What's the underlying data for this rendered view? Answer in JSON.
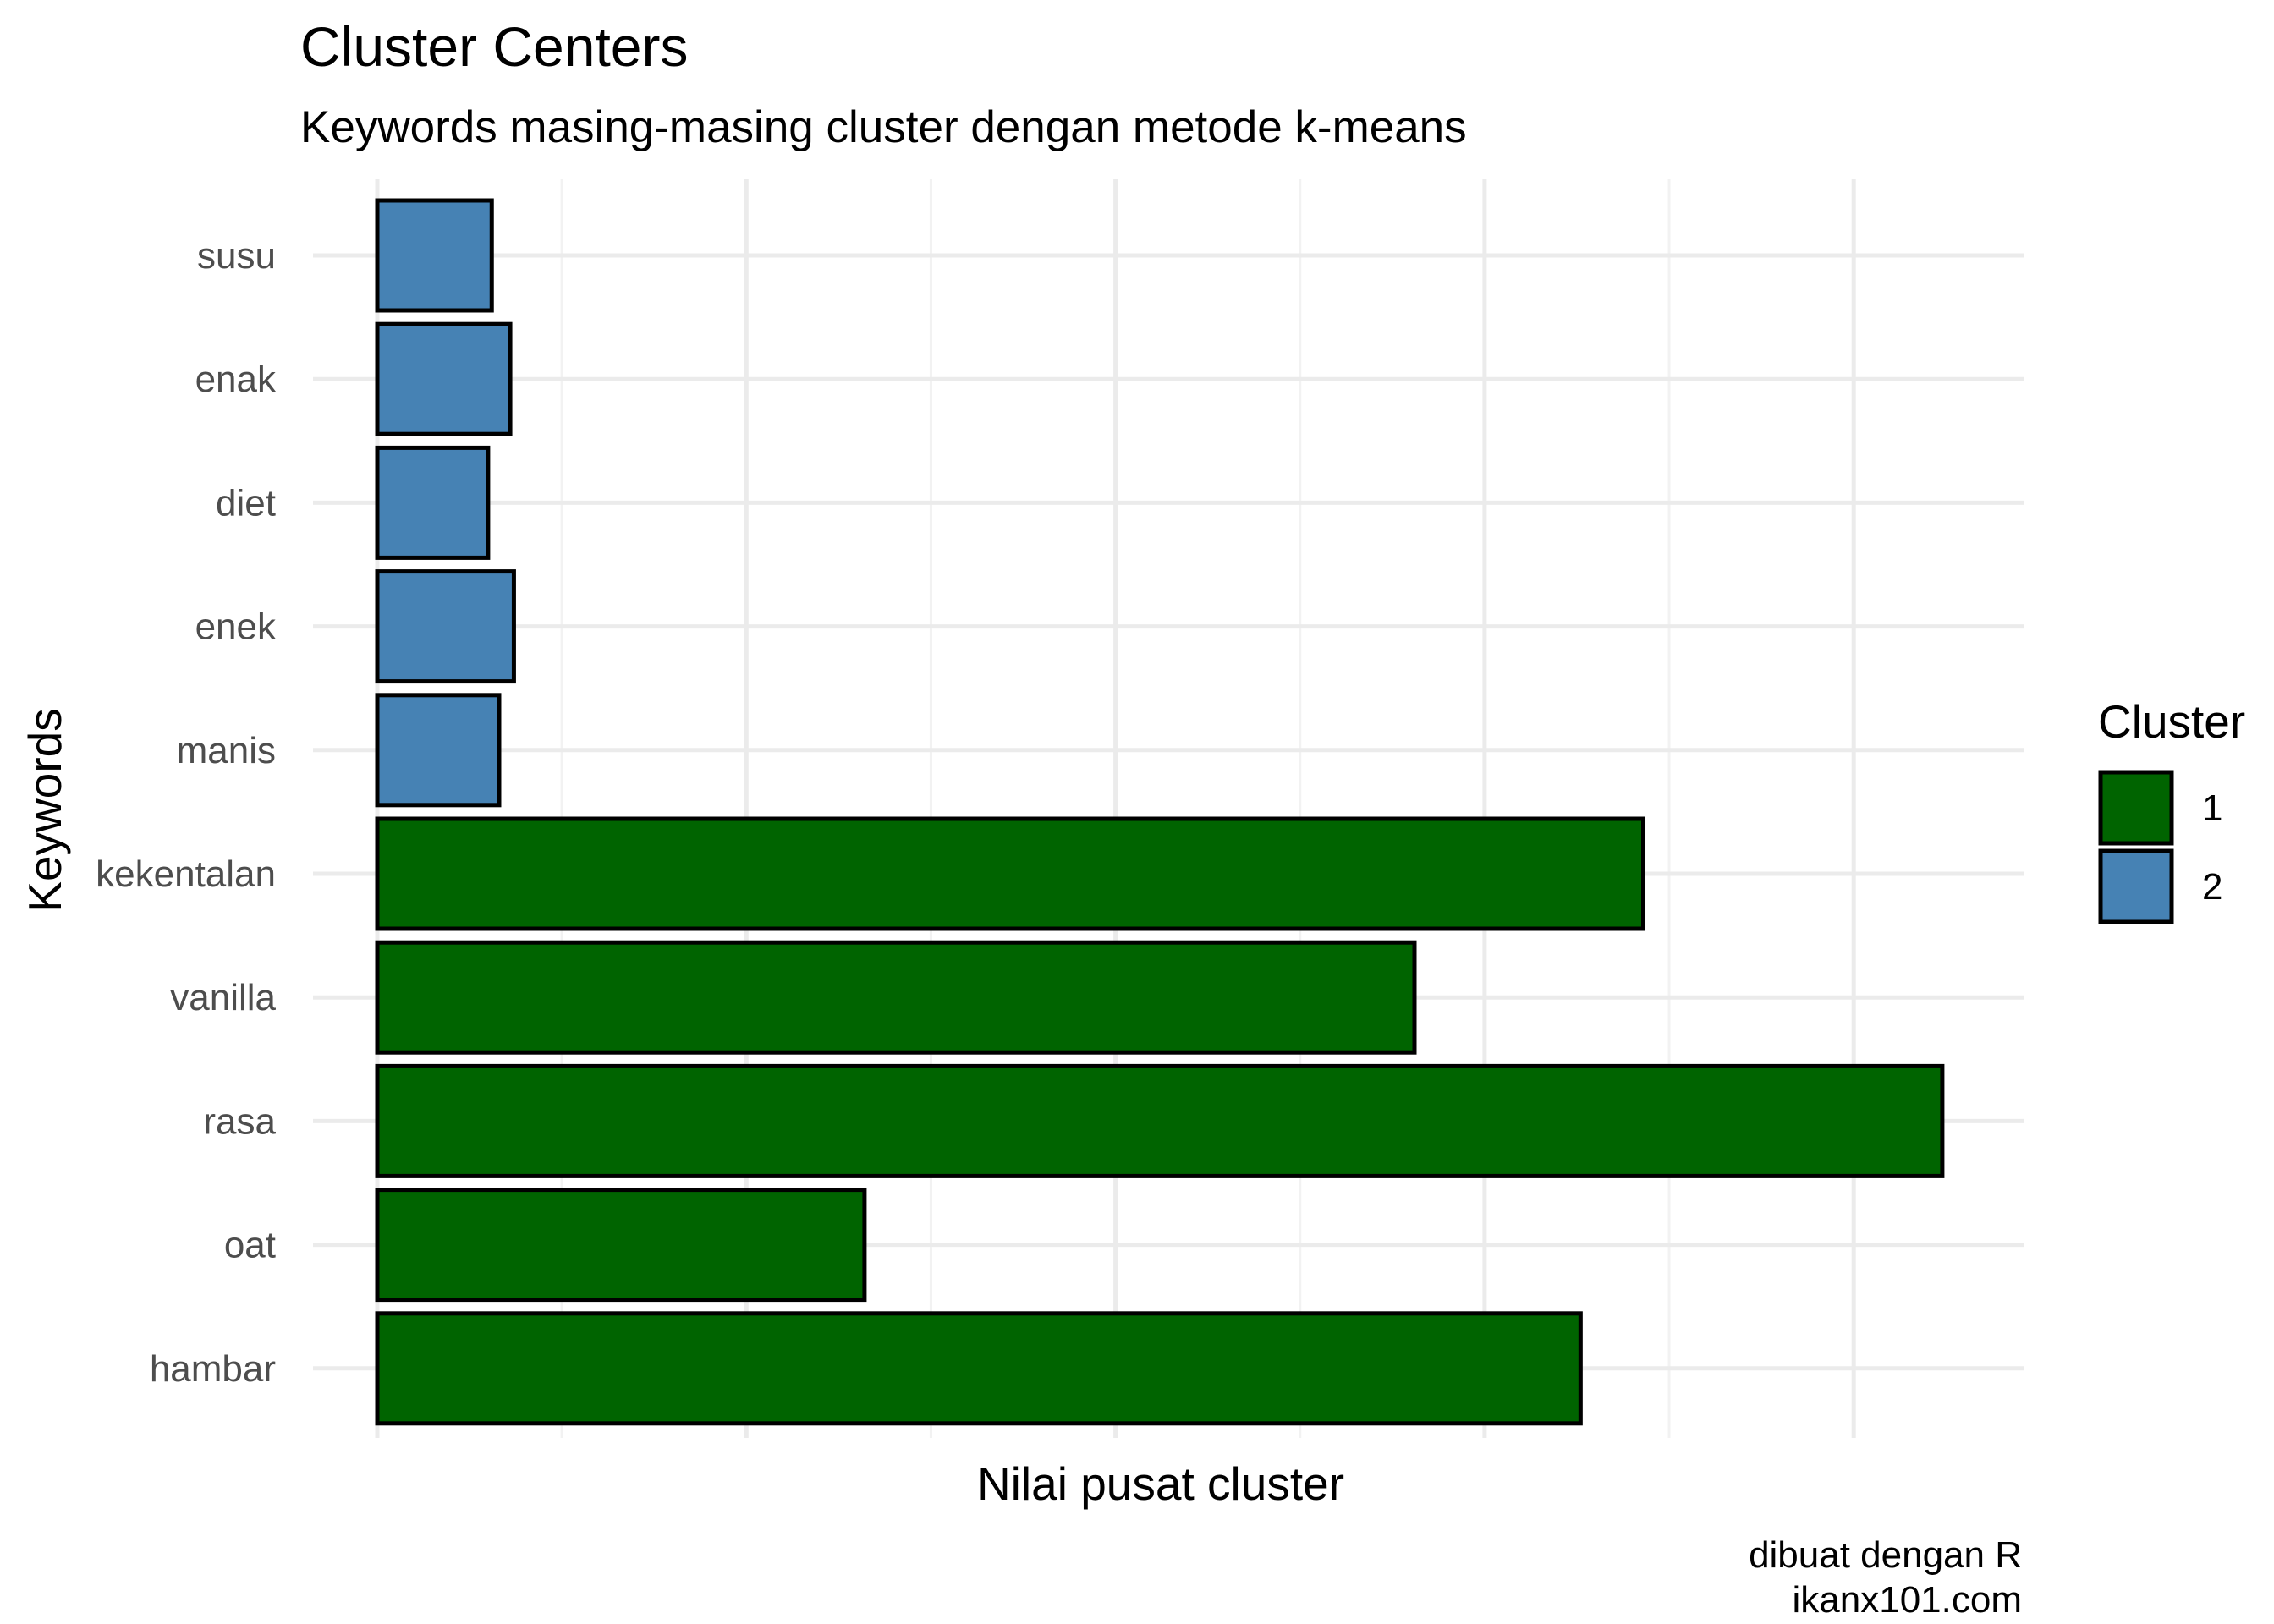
{
  "chart_data": {
    "type": "bar",
    "orientation": "horizontal",
    "title": "Cluster Centers",
    "subtitle": "Keywords masing-masing cluster dengan metode k-means",
    "xlabel": "Nilai pusat cluster",
    "ylabel": "Keywords",
    "caption_line1": "dibuat dengan R",
    "caption_line2": "ikanx101.com",
    "x_tick_labels_shown": false,
    "xlim": [
      0,
      4.45
    ],
    "grid": true,
    "legend": {
      "title": "Cluster",
      "placement": "right",
      "entries": [
        {
          "label": "1",
          "color": "#006400"
        },
        {
          "label": "2",
          "color": "#4682b4"
        }
      ]
    },
    "categories": [
      "susu",
      "enak",
      "diet",
      "enek",
      "manis",
      "kekentalan",
      "vanilla",
      "rasa",
      "oat",
      "hambar"
    ],
    "values": [
      0.31,
      0.36,
      0.3,
      0.37,
      0.33,
      3.43,
      2.81,
      4.24,
      1.32,
      3.26
    ],
    "clusters": [
      "2",
      "2",
      "2",
      "2",
      "2",
      "1",
      "1",
      "1",
      "1",
      "1"
    ],
    "colors": {
      "bar_border": "#000000",
      "grid": "#ebebeb"
    }
  }
}
